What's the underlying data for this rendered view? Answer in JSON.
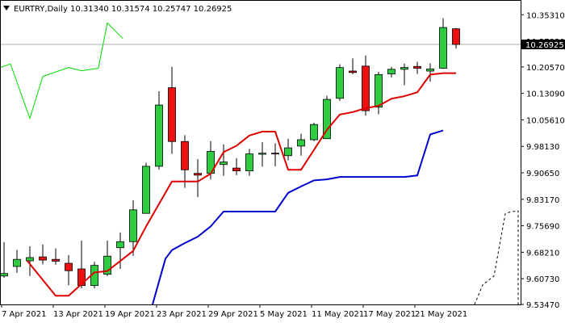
{
  "header": {
    "symbol_period": "EURTRY,Daily",
    "ohlc": "10.31340 10.31574 10.25747 10.26925"
  },
  "colors": {
    "up_candle": "#2ecc40",
    "down_candle": "#ee1111",
    "wick": "#000000",
    "red_line": "#dd0000",
    "blue_line": "#0000cc",
    "green_line": "#00dd00",
    "price_line": "#b0b0b0",
    "price_label_bg": "#000000",
    "price_label_fg": "#ffffff"
  },
  "chart_data": {
    "type": "candlestick",
    "ylim": [
      9.5347,
      10.3651
    ],
    "y_ticks": [
      "10.35310",
      "10.27830",
      "10.20570",
      "10.13090",
      "10.05610",
      "9.98130",
      "9.90650",
      "9.83170",
      "9.75690",
      "9.68210",
      "9.60730",
      "9.53470"
    ],
    "current_price": "10.26925",
    "x_tick_labels": [
      {
        "label": "7 Apr 2021",
        "index": 0
      },
      {
        "label": "13 Apr 2021",
        "index": 4
      },
      {
        "label": "19 Apr 2021",
        "index": 8
      },
      {
        "label": "23 Apr 2021",
        "index": 12
      },
      {
        "label": "29 Apr 2021",
        "index": 16
      },
      {
        "label": "5 May 2021",
        "index": 20
      },
      {
        "label": "11 May 2021",
        "index": 24
      },
      {
        "label": "17 May 2021",
        "index": 28
      },
      {
        "label": "21 May 2021",
        "index": 32
      }
    ],
    "candles": [
      {
        "o": 9.615,
        "h": 9.711,
        "l": 9.61,
        "c": 9.622
      },
      {
        "o": 9.642,
        "h": 9.689,
        "l": 9.624,
        "c": 9.662
      },
      {
        "o": 9.658,
        "h": 9.699,
        "l": 9.615,
        "c": 9.667
      },
      {
        "o": 9.669,
        "h": 9.704,
        "l": 9.648,
        "c": 9.66
      },
      {
        "o": 9.662,
        "h": 9.693,
        "l": 9.647,
        "c": 9.657
      },
      {
        "o": 9.651,
        "h": 9.674,
        "l": 9.589,
        "c": 9.63
      },
      {
        "o": 9.635,
        "h": 9.715,
        "l": 9.58,
        "c": 9.588
      },
      {
        "o": 9.588,
        "h": 9.655,
        "l": 9.58,
        "c": 9.645
      },
      {
        "o": 9.62,
        "h": 9.715,
        "l": 9.615,
        "c": 9.671
      },
      {
        "o": 9.695,
        "h": 9.738,
        "l": 9.635,
        "c": 9.712
      },
      {
        "o": 9.712,
        "h": 9.829,
        "l": 9.672,
        "c": 9.802
      },
      {
        "o": 9.792,
        "h": 9.935,
        "l": 9.792,
        "c": 9.925
      },
      {
        "o": 9.925,
        "h": 10.137,
        "l": 9.915,
        "c": 10.098
      },
      {
        "o": 10.147,
        "h": 10.206,
        "l": 9.96,
        "c": 9.995
      },
      {
        "o": 9.995,
        "h": 10.013,
        "l": 9.864,
        "c": 9.915
      },
      {
        "o": 9.905,
        "h": 9.945,
        "l": 9.838,
        "c": 9.9
      },
      {
        "o": 9.905,
        "h": 9.996,
        "l": 9.888,
        "c": 9.967
      },
      {
        "o": 9.93,
        "h": 9.987,
        "l": 9.898,
        "c": 9.937
      },
      {
        "o": 9.92,
        "h": 9.948,
        "l": 9.9,
        "c": 9.912
      },
      {
        "o": 9.912,
        "h": 9.974,
        "l": 9.898,
        "c": 9.96
      },
      {
        "o": 9.959,
        "h": 9.993,
        "l": 9.924,
        "c": 9.962
      },
      {
        "o": 9.962,
        "h": 9.99,
        "l": 9.925,
        "c": 9.96
      },
      {
        "o": 9.955,
        "h": 10.003,
        "l": 9.942,
        "c": 9.977
      },
      {
        "o": 9.982,
        "h": 10.017,
        "l": 9.955,
        "c": 10.0
      },
      {
        "o": 10.0,
        "h": 10.048,
        "l": 9.996,
        "c": 10.043
      },
      {
        "o": 10.003,
        "h": 10.124,
        "l": 10.003,
        "c": 10.114
      },
      {
        "o": 10.117,
        "h": 10.213,
        "l": 10.11,
        "c": 10.204
      },
      {
        "o": 10.194,
        "h": 10.23,
        "l": 10.185,
        "c": 10.19
      },
      {
        "o": 10.208,
        "h": 10.238,
        "l": 10.068,
        "c": 10.082
      },
      {
        "o": 10.092,
        "h": 10.192,
        "l": 10.072,
        "c": 10.184
      },
      {
        "o": 10.186,
        "h": 10.206,
        "l": 10.176,
        "c": 10.199
      },
      {
        "o": 10.199,
        "h": 10.215,
        "l": 10.154,
        "c": 10.204
      },
      {
        "o": 10.207,
        "h": 10.22,
        "l": 10.186,
        "c": 10.202
      },
      {
        "o": 10.194,
        "h": 10.216,
        "l": 10.164,
        "c": 10.2
      },
      {
        "o": 10.202,
        "h": 10.343,
        "l": 10.2,
        "c": 10.317
      },
      {
        "o": 10.3134,
        "h": 10.3157,
        "l": 10.2575,
        "c": 10.2693
      }
    ],
    "red_line": [
      {
        "i": 1.8,
        "v": 9.658
      },
      {
        "i": 4,
        "v": 9.559
      },
      {
        "i": 5,
        "v": 9.559
      },
      {
        "i": 7,
        "v": 9.625
      },
      {
        "i": 8,
        "v": 9.629
      },
      {
        "i": 10,
        "v": 9.686
      },
      {
        "i": 11,
        "v": 9.755
      },
      {
        "i": 13,
        "v": 9.882
      },
      {
        "i": 15,
        "v": 9.882
      },
      {
        "i": 16,
        "v": 9.904
      },
      {
        "i": 17,
        "v": 9.965
      },
      {
        "i": 18,
        "v": 9.983
      },
      {
        "i": 19,
        "v": 10.012
      },
      {
        "i": 20,
        "v": 10.023
      },
      {
        "i": 21,
        "v": 10.023
      },
      {
        "i": 22,
        "v": 9.915
      },
      {
        "i": 23,
        "v": 9.915
      },
      {
        "i": 25,
        "v": 10.028
      },
      {
        "i": 26,
        "v": 10.071
      },
      {
        "i": 27,
        "v": 10.078
      },
      {
        "i": 28,
        "v": 10.089
      },
      {
        "i": 29,
        "v": 10.096
      },
      {
        "i": 30,
        "v": 10.116
      },
      {
        "i": 31,
        "v": 10.123
      },
      {
        "i": 32,
        "v": 10.134
      },
      {
        "i": 33,
        "v": 10.184
      },
      {
        "i": 34,
        "v": 10.188
      },
      {
        "i": 35,
        "v": 10.188
      }
    ],
    "blue_line": [
      {
        "i": 11.5,
        "v": 9.5347
      },
      {
        "i": 12.5,
        "v": 9.664
      },
      {
        "i": 13,
        "v": 9.688
      },
      {
        "i": 14,
        "v": 9.708
      },
      {
        "i": 15,
        "v": 9.726
      },
      {
        "i": 16,
        "v": 9.755
      },
      {
        "i": 17,
        "v": 9.797
      },
      {
        "i": 21,
        "v": 9.797
      },
      {
        "i": 22,
        "v": 9.85
      },
      {
        "i": 23,
        "v": 9.868
      },
      {
        "i": 24,
        "v": 9.885
      },
      {
        "i": 25,
        "v": 9.888
      },
      {
        "i": 26,
        "v": 9.895
      },
      {
        "i": 31,
        "v": 9.895
      },
      {
        "i": 32,
        "v": 9.899
      },
      {
        "i": 33,
        "v": 10.015
      },
      {
        "i": 34,
        "v": 10.026
      }
    ],
    "green_line": [
      {
        "i": -0.3,
        "v": 10.204
      },
      {
        "i": 0.5,
        "v": 10.214
      },
      {
        "i": 2,
        "v": 10.06
      },
      {
        "i": 3,
        "v": 10.179
      },
      {
        "i": 5,
        "v": 10.204
      },
      {
        "i": 6,
        "v": 10.195
      },
      {
        "i": 7.3,
        "v": 10.202
      },
      {
        "i": 8,
        "v": 10.33
      },
      {
        "i": 9.2,
        "v": 10.286
      }
    ],
    "dashed_line": [
      {
        "x": 588,
        "v": 9.5347
      },
      {
        "x": 598,
        "v": 9.59
      },
      {
        "x": 612,
        "v": 9.615
      },
      {
        "x": 618,
        "v": 9.69
      },
      {
        "x": 626,
        "v": 9.791
      },
      {
        "x": 632,
        "v": 9.796
      },
      {
        "x": 642,
        "v": 9.799
      },
      {
        "x": 642,
        "v": 9.5347
      }
    ]
  }
}
